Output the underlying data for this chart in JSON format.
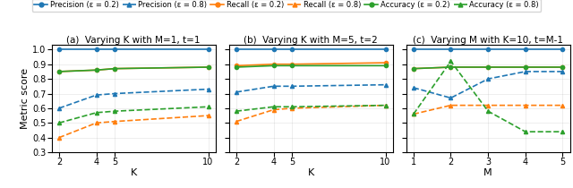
{
  "panel_a": {
    "title": "(a)  Varying K with M=1, t=1",
    "xlabel": "K",
    "x": [
      2,
      4,
      5,
      10
    ],
    "precision_02": [
      1.0,
      1.0,
      1.0,
      1.0
    ],
    "precision_08": [
      0.6,
      0.69,
      0.7,
      0.73
    ],
    "recall_02": [
      0.85,
      0.86,
      0.87,
      0.88
    ],
    "recall_08": [
      0.4,
      0.5,
      0.51,
      0.55
    ],
    "accuracy_02": [
      0.85,
      0.86,
      0.87,
      0.88
    ],
    "accuracy_08": [
      0.5,
      0.57,
      0.58,
      0.61
    ]
  },
  "panel_b": {
    "title": "(b)  Varying K with M=5, t=2",
    "xlabel": "K",
    "x": [
      2,
      4,
      5,
      10
    ],
    "precision_02": [
      1.0,
      1.0,
      1.0,
      1.0
    ],
    "precision_08": [
      0.71,
      0.75,
      0.75,
      0.76
    ],
    "recall_02": [
      0.89,
      0.9,
      0.9,
      0.91
    ],
    "recall_08": [
      0.51,
      0.59,
      0.6,
      0.62
    ],
    "accuracy_02": [
      0.88,
      0.89,
      0.89,
      0.89
    ],
    "accuracy_08": [
      0.58,
      0.61,
      0.61,
      0.62
    ]
  },
  "panel_c": {
    "title": "(c)  Varying M with K=10, t=M-1",
    "xlabel": "M",
    "x": [
      1,
      2,
      3,
      4,
      5
    ],
    "precision_02": [
      1.0,
      1.0,
      1.0,
      1.0,
      1.0
    ],
    "precision_08": [
      0.74,
      0.67,
      0.8,
      0.85,
      0.85
    ],
    "recall_02": [
      0.87,
      0.88,
      0.88,
      0.88,
      0.88
    ],
    "recall_08": [
      0.56,
      0.62,
      0.62,
      0.62,
      0.62
    ],
    "accuracy_02": [
      0.87,
      0.88,
      0.88,
      0.88,
      0.88
    ],
    "accuracy_08": [
      0.56,
      0.92,
      0.58,
      0.44,
      0.44
    ]
  },
  "colors": {
    "blue": "#1f77b4",
    "orange": "#ff7f0e",
    "green": "#2ca02c"
  },
  "ylim": [
    0.3,
    1.03
  ],
  "yticks": [
    0.3,
    0.4,
    0.5,
    0.6,
    0.7,
    0.8,
    0.9,
    1.0
  ],
  "ylabel": "Metric score",
  "legend_labels": [
    "Precision (ε = 0.2)",
    "Precision (ε = 0.8)",
    "Recall (ε = 0.2)",
    "Recall (ε = 0.8)",
    "Accuracy (ε = 0.2)",
    "Accuracy (ε = 0.8)"
  ]
}
